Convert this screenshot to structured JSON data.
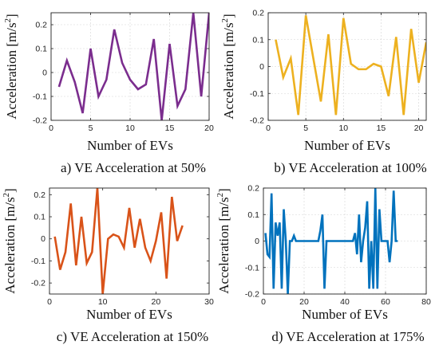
{
  "chart_data": [
    {
      "type": "line",
      "caption": "a) VE Acceleration  at 50%",
      "xlabel": "Number of EVs",
      "ylabel_text": "Acceleration [m/s",
      "ylabel_sup": "2",
      "ylabel_close": "]",
      "color": "#7B2D8E",
      "xlim": [
        0,
        20
      ],
      "ylim": [
        -0.2,
        0.25
      ],
      "xticks": [
        0,
        5,
        10,
        15,
        20
      ],
      "yticks": [
        -0.2,
        -0.1,
        0,
        0.1,
        0.2
      ],
      "grid": true,
      "x": [
        1,
        2,
        3,
        4,
        5,
        6,
        7,
        8,
        9,
        10,
        11,
        12,
        13,
        14,
        15,
        16,
        17,
        18,
        19,
        20
      ],
      "values": [
        -0.06,
        0.05,
        -0.04,
        -0.17,
        0.1,
        -0.1,
        -0.03,
        0.18,
        0.04,
        -0.03,
        -0.07,
        -0.05,
        0.14,
        -0.2,
        0.12,
        -0.14,
        -0.07,
        0.25,
        -0.1,
        0.25
      ]
    },
    {
      "type": "line",
      "caption": "b) VE Acceleration  at 100%",
      "xlabel": "Number of EVs",
      "ylabel_text": "Acceleration [m/s",
      "ylabel_sup": "2",
      "ylabel_close": "]",
      "color": "#EDB120",
      "xlim": [
        0,
        21
      ],
      "ylim": [
        -0.2,
        0.2
      ],
      "xticks": [
        0,
        5,
        10,
        15,
        20
      ],
      "yticks": [
        -0.2,
        -0.1,
        0,
        0.1,
        0.2
      ],
      "grid": true,
      "x": [
        1,
        2,
        3,
        4,
        5,
        6,
        7,
        8,
        9,
        10,
        11,
        12,
        13,
        14,
        15,
        16,
        17,
        18,
        19,
        20,
        21
      ],
      "values": [
        0.1,
        -0.04,
        0.03,
        -0.18,
        0.19,
        0.03,
        -0.13,
        0.12,
        -0.18,
        0.18,
        0.01,
        -0.01,
        -0.01,
        0.01,
        0.0,
        -0.11,
        0.11,
        -0.18,
        0.14,
        -0.06,
        0.09
      ]
    },
    {
      "type": "line",
      "caption": "c) VE Acceleration  at 150%",
      "xlabel": "Number of EVs",
      "ylabel_text": "Acceleration [m/s",
      "ylabel_sup": "2",
      "ylabel_close": "]",
      "color": "#D95319",
      "xlim": [
        0,
        30
      ],
      "ylim": [
        -0.25,
        0.23
      ],
      "xticks": [
        0,
        10,
        20,
        30
      ],
      "yticks": [
        -0.2,
        -0.1,
        0,
        0.1,
        0.2
      ],
      "grid": false,
      "x": [
        1,
        2,
        3,
        4,
        5,
        6,
        7,
        8,
        9,
        10,
        11,
        12,
        13,
        14,
        15,
        16,
        17,
        18,
        19,
        20,
        21,
        22,
        23,
        24,
        25
      ],
      "values": [
        0.01,
        -0.14,
        -0.06,
        0.16,
        -0.12,
        0.1,
        -0.11,
        -0.06,
        0.23,
        -0.25,
        0.0,
        0.02,
        0.01,
        -0.04,
        0.14,
        -0.04,
        0.09,
        -0.04,
        -0.1,
        -0.01,
        0.12,
        -0.18,
        0.19,
        -0.01,
        0.06
      ]
    },
    {
      "type": "line",
      "caption": "d) VE Acceleration  at 175%",
      "xlabel": "Number of EVs",
      "ylabel_text": "Acceleration [m/s",
      "ylabel_sup": "2",
      "ylabel_close": "]",
      "color": "#0072BD",
      "xlim": [
        0,
        80
      ],
      "ylim": [
        -0.2,
        0.2
      ],
      "xticks": [
        0,
        20,
        40,
        60,
        80
      ],
      "yticks": [
        -0.2,
        -0.1,
        0,
        0.1,
        0.2
      ],
      "grid": true,
      "x": [
        1,
        2,
        3,
        4,
        5,
        6,
        7,
        8,
        9,
        10,
        11,
        12,
        13,
        14,
        15,
        16,
        17,
        18,
        19,
        20,
        21,
        22,
        23,
        24,
        25,
        26,
        27,
        28,
        29,
        30,
        31,
        32,
        33,
        34,
        35,
        36,
        37,
        38,
        39,
        40,
        41,
        42,
        43,
        44,
        45,
        46,
        47,
        48,
        49,
        50,
        51,
        52,
        53,
        54,
        55,
        56,
        57,
        58,
        59,
        60,
        61,
        62,
        63,
        64,
        65,
        66
      ],
      "values": [
        0.03,
        -0.05,
        -0.06,
        0.18,
        -0.18,
        0.07,
        0.02,
        0.07,
        -0.18,
        0.12,
        0.0,
        -0.2,
        0.0,
        0.0,
        0.02,
        0.0,
        0.0,
        0.0,
        0.0,
        0.0,
        0.0,
        0.0,
        0.0,
        0.0,
        0.0,
        0.0,
        0.0,
        0.04,
        0.1,
        -0.18,
        0.0,
        0.0,
        0.0,
        0.0,
        0.0,
        0.0,
        0.0,
        0.0,
        0.0,
        0.0,
        0.0,
        0.0,
        0.0,
        0.0,
        0.03,
        -0.05,
        0.1,
        -0.08,
        0.0,
        0.05,
        0.15,
        -0.18,
        0.0,
        -0.18,
        0.2,
        -0.18,
        0.12,
        0.0,
        0.0,
        0.0,
        0.0,
        -0.08,
        0.0,
        0.19,
        0.0,
        0.0
      ]
    }
  ]
}
